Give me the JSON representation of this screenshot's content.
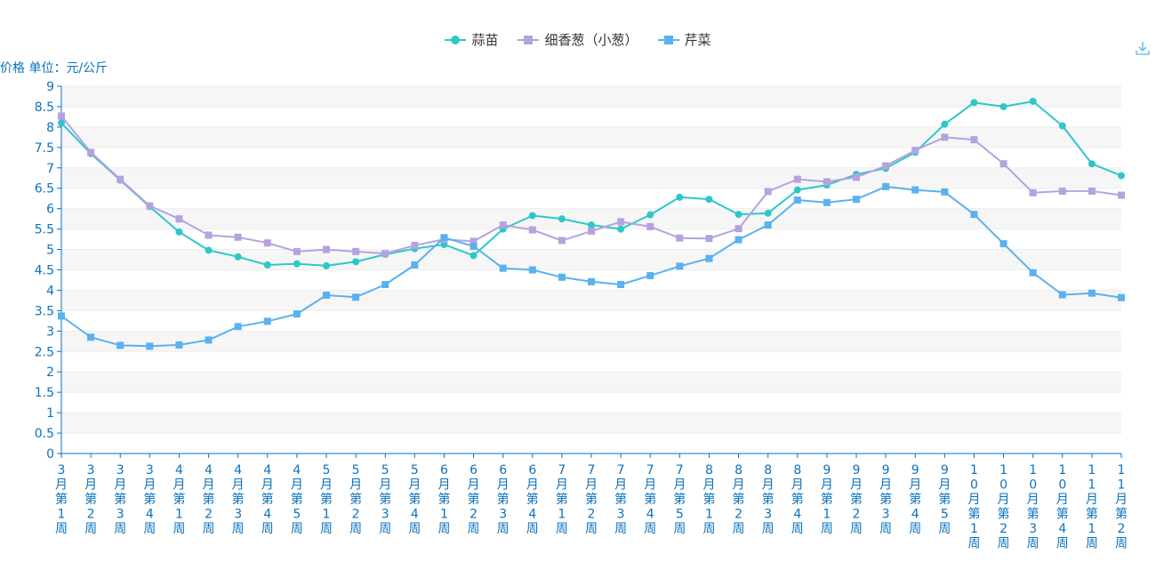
{
  "chart_data": {
    "type": "line",
    "ylabel": "价格 单位：元/公斤",
    "xlabel": "",
    "ylim": [
      0,
      9
    ],
    "ytick_step": 0.5,
    "ytick_labels": [
      "0",
      "0.5",
      "1",
      "1.5",
      "2",
      "2.5",
      "3",
      "3.5",
      "4",
      "4.5",
      "5",
      "5.5",
      "6",
      "6.5",
      "7",
      "7.5",
      "8",
      "8.5",
      "9"
    ],
    "grid": "horizontal bands",
    "legend_position": "top-center",
    "categories": [
      "3月第1周",
      "3月第2周",
      "3月第3周",
      "3月第4周",
      "4月第1周",
      "4月第2周",
      "4月第3周",
      "4月第4周",
      "4月第5周",
      "5月第1周",
      "5月第2周",
      "5月第3周",
      "5月第4周",
      "6月第1周",
      "6月第2周",
      "6月第3周",
      "6月第4周",
      "7月第1周",
      "7月第2周",
      "7月第3周",
      "7月第4周",
      "7月第5周",
      "8月第1周",
      "8月第2周",
      "8月第3周",
      "8月第4周",
      "9月第1周",
      "9月第2周",
      "9月第3周",
      "9月第4周",
      "9月第5周",
      "10月第1周",
      "10月第2周",
      "10月第3周",
      "10月第4周",
      "11月第1周",
      "11月第2周"
    ],
    "series": [
      {
        "name": "蒜苗",
        "color": "#2ec7c9",
        "marker": "circle",
        "values": [
          8.1,
          7.35,
          6.7,
          6.05,
          5.43,
          4.98,
          4.82,
          4.62,
          4.65,
          4.6,
          4.7,
          4.88,
          5.02,
          5.12,
          4.85,
          5.5,
          5.83,
          5.75,
          5.6,
          5.5,
          5.85,
          6.28,
          6.23,
          5.86,
          5.89,
          6.46,
          6.58,
          6.84,
          6.99,
          7.38,
          8.07,
          8.6,
          8.5,
          8.63,
          8.03,
          7.1,
          6.81
        ]
      },
      {
        "name": "细香葱（小葱）",
        "color": "#b6a2de",
        "marker": "square",
        "values": [
          8.27,
          7.38,
          6.72,
          6.07,
          5.75,
          5.35,
          5.3,
          5.16,
          4.95,
          5.0,
          4.95,
          4.9,
          5.1,
          5.25,
          5.2,
          5.6,
          5.48,
          5.22,
          5.45,
          5.68,
          5.56,
          5.28,
          5.27,
          5.51,
          6.42,
          6.72,
          6.66,
          6.77,
          7.05,
          7.43,
          7.75,
          7.69,
          7.1,
          6.39,
          6.43,
          6.43,
          6.33
        ]
      },
      {
        "name": "芹菜",
        "color": "#5ab1ef",
        "marker": "square",
        "values": [
          3.37,
          2.85,
          2.65,
          2.63,
          2.66,
          2.78,
          3.11,
          3.24,
          3.42,
          3.88,
          3.83,
          4.14,
          4.62,
          5.29,
          5.08,
          4.54,
          4.5,
          4.32,
          4.21,
          4.14,
          4.36,
          4.59,
          4.78,
          5.24,
          5.6,
          6.21,
          6.15,
          6.23,
          6.54,
          6.46,
          6.41,
          5.86,
          5.14,
          4.43,
          3.89,
          3.93,
          3.82
        ]
      }
    ]
  }
}
